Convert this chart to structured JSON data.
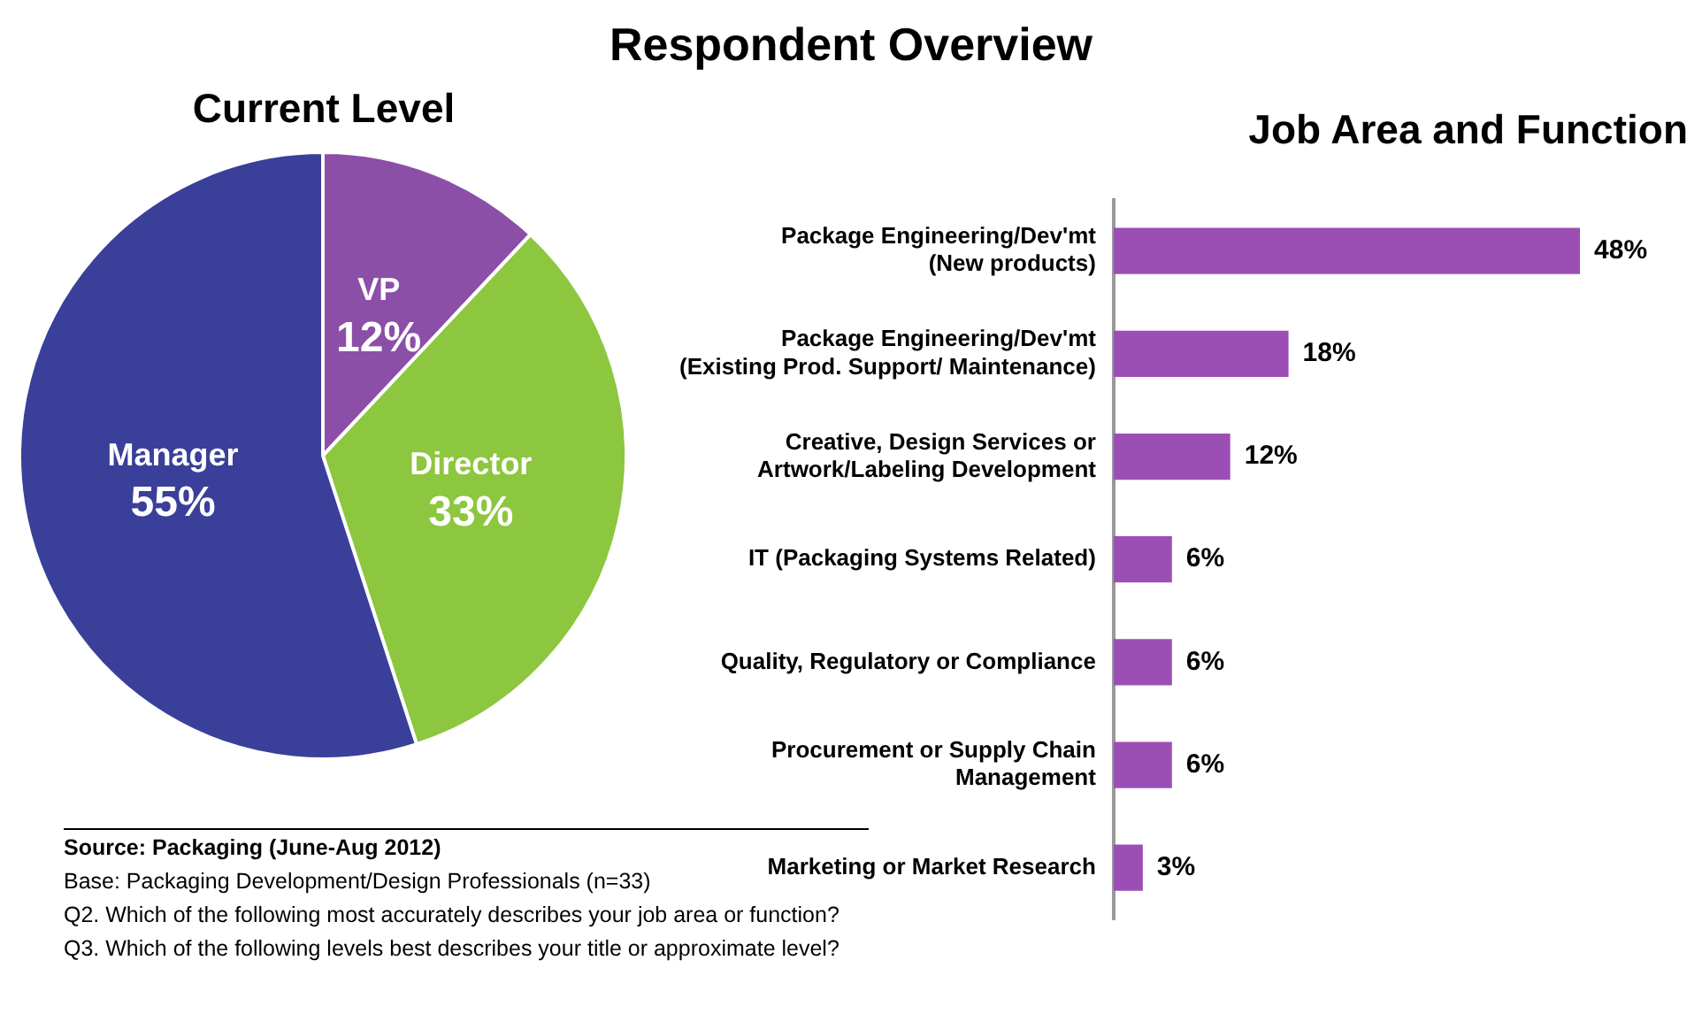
{
  "chart_data": [
    {
      "type": "pie",
      "title": "Respondent Overview",
      "subtitle": "Current Level",
      "categories": [
        "VP",
        "Director",
        "Manager"
      ],
      "values": [
        12,
        33,
        55
      ],
      "colors": [
        "#8b4fa8",
        "#8dc63f",
        "#3a3f99"
      ],
      "value_labels": [
        "12%",
        "33%",
        "55%"
      ],
      "legend": false,
      "annotations": [
        "Source: Packaging (June-Aug 2012)",
        "Base:  Packaging Development/Design Professionals (n=33)",
        "Q2. Which of the following most accurately describes your job area or function?",
        "Q3. Which of the following levels best describes your title or approximate level?"
      ]
    },
    {
      "type": "bar",
      "orientation": "horizontal",
      "title": "Job Area and Function",
      "categories": [
        "Package Engineering/Dev'mt\n(New products)",
        "Package Engineering/Dev'mt\n(Existing Prod. Support/ Maintenance)",
        "Creative, Design Services or\nArtwork/Labeling Development",
        "IT (Packaging Systems Related)",
        "Quality, Regulatory or Compliance",
        "Procurement or Supply Chain\nManagement",
        "Marketing or Market Research"
      ],
      "values": [
        48,
        18,
        12,
        6,
        6,
        6,
        3
      ],
      "color": "#9b4fb5",
      "value_labels": [
        "48%",
        "18%",
        "12%",
        "6%",
        "6%",
        "6%",
        "3%"
      ],
      "tick_labels": "y",
      "grid": false,
      "legend": false
    }
  ]
}
